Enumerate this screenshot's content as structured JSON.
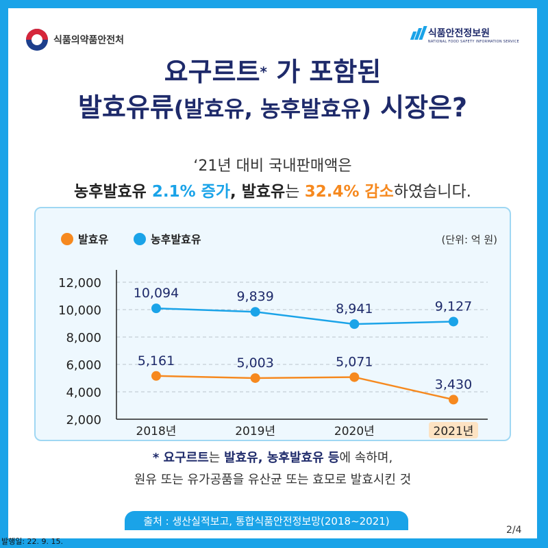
{
  "header": {
    "ministry_name": "식품의약품안전처",
    "agency_name": "식품안전정보원",
    "agency_name_en": "NATIONAL FOOD SAFETY INFORMATION SERVICE"
  },
  "title": {
    "line1_a": "요구르트",
    "line1_mark": "*",
    "line1_b": " 가 포함된",
    "line2_a": "발효유류",
    "line2_paren": "(발효유, 농후발효유)",
    "line2_b": " 시장은?"
  },
  "summary": {
    "line1": "‘21년 대비 국내판매액은",
    "part1": "농후발효유 ",
    "part2": "2.1% 증가",
    "part3": ", ",
    "part4": "발효유",
    "part5": "는 ",
    "part6": "32.4% 감소",
    "part7": "하였습니다."
  },
  "colors": {
    "accent_blue": "#1aa3e8",
    "accent_orange": "#f6891f",
    "navy": "#1e2a6a"
  },
  "chart_data": {
    "type": "line",
    "categories": [
      "2018년",
      "2019년",
      "2020년",
      "2021년"
    ],
    "highlight_category": "2021년",
    "series": [
      {
        "name": "발효유",
        "color": "#f6891f",
        "values": [
          5161,
          5003,
          5071,
          3430
        ],
        "labels": [
          "5,161",
          "5,003",
          "5,071",
          "3,430"
        ]
      },
      {
        "name": "농후발효유",
        "color": "#1aa3e8",
        "values": [
          10094,
          9839,
          8941,
          9127
        ],
        "labels": [
          "10,094",
          "9,839",
          "8,941",
          "9,127"
        ]
      }
    ],
    "unit_label": "(단위: 억 원)",
    "ylim": [
      2000,
      12000
    ],
    "yticks": [
      2000,
      4000,
      6000,
      8000,
      10000,
      12000
    ],
    "ytick_labels": [
      "2,000",
      "4,000",
      "6,000",
      "8,000",
      "10,000",
      "12,000"
    ],
    "grid": true,
    "legend_placement": "top-left"
  },
  "note": {
    "mark": "* ",
    "a": "요구르트",
    "b": "는 ",
    "c": "발효유, 농후발효유 등",
    "d": "에 속하며,",
    "line2": "원유 또는 유가공품을 유산균 또는 효모로 발효시킨 것"
  },
  "footer": {
    "source": "출처 : 생산실적보고, 통합식품안전정보망(2018~2021)",
    "page": "2/4",
    "published": "발행일: 22. 9. 15."
  }
}
